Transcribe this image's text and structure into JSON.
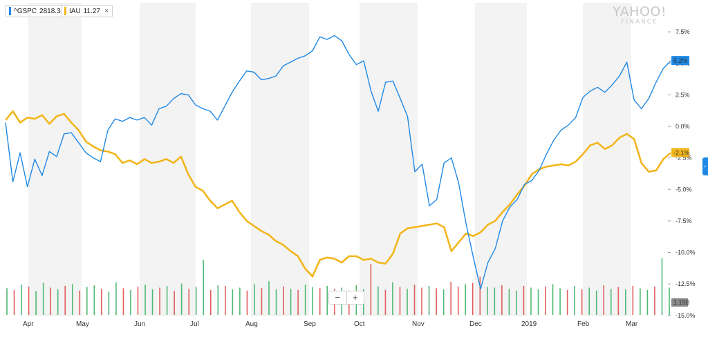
{
  "legend": {
    "items": [
      {
        "symbol": "^GSPC",
        "value": "2818.37",
        "color": "#1e88e5",
        "closable": false
      },
      {
        "symbol": "IAU",
        "value": "11.27",
        "color": "#f2b51b",
        "closable": true
      }
    ],
    "close_glyph": "×"
  },
  "watermark": {
    "line1": "YAHOO!",
    "line2": "FINANCE"
  },
  "zoom": {
    "minus": "−",
    "plus": "+"
  },
  "side_tab": {
    "glyph": "›",
    "icon": "chevron-right-icon"
  },
  "colors": {
    "spy": "#1e88e5",
    "gold": "#f2b51b",
    "vol_up": "#4fb874",
    "vol_down": "#e05d5d",
    "band": "#f3f3f3"
  },
  "chart_data": {
    "type": "line",
    "title": "",
    "ylabel": "",
    "ylim": [
      -15,
      10
    ],
    "yticks": [
      "7.5%",
      "5.0%",
      "2.5%",
      "0.0%",
      "-2.5%",
      "-5.0%",
      "-7.5%",
      "-10.0%",
      "-12.5%",
      "-15.0%"
    ],
    "months": [
      "Apr",
      "May",
      "Jun",
      "Jul",
      "Aug",
      "Sep",
      "Oct",
      "Nov",
      "Dec",
      "2019",
      "Feb",
      "Mar"
    ],
    "series": [
      {
        "name": "^GSPC",
        "end_label": "5.2%",
        "values": [
          0.3,
          -4.4,
          -2.1,
          -4.8,
          -2.6,
          -3.9,
          -2.0,
          -2.4,
          -0.6,
          -0.5,
          -1.3,
          -2.1,
          -2.5,
          -2.8,
          -0.3,
          0.6,
          0.4,
          0.7,
          0.5,
          0.7,
          0.1,
          1.4,
          1.6,
          2.2,
          2.6,
          2.5,
          1.7,
          1.4,
          1.2,
          0.5,
          1.6,
          2.7,
          3.6,
          4.4,
          4.3,
          3.7,
          3.8,
          4.0,
          4.8,
          5.1,
          5.4,
          5.6,
          6.0,
          7.1,
          6.9,
          7.2,
          6.8,
          5.7,
          4.9,
          5.2,
          2.8,
          1.2,
          3.5,
          3.6,
          2.2,
          0.8,
          -3.6,
          -3.0,
          -6.3,
          -5.8,
          -2.9,
          -2.5,
          -4.5,
          -7.7,
          -10.4,
          -12.9,
          -10.8,
          -9.7,
          -7.5,
          -6.4,
          -5.8,
          -4.6,
          -4.3,
          -3.5,
          -2.2,
          -1.1,
          -0.3,
          0.1,
          0.7,
          2.3,
          2.8,
          3.1,
          2.7,
          3.3,
          4.0,
          5.1,
          2.1,
          1.4,
          2.2,
          3.5,
          4.6,
          5.2
        ]
      },
      {
        "name": "IAU",
        "end_label": "-2.1%",
        "values": [
          0.5,
          1.2,
          0.3,
          0.7,
          0.6,
          0.9,
          0.2,
          0.8,
          1.0,
          0.3,
          -0.3,
          -1.2,
          -1.6,
          -1.9,
          -2.0,
          -2.2,
          -2.9,
          -2.7,
          -3.0,
          -2.6,
          -2.9,
          -2.8,
          -2.6,
          -2.9,
          -2.4,
          -3.8,
          -4.8,
          -5.1,
          -5.9,
          -6.5,
          -6.2,
          -5.9,
          -6.8,
          -7.5,
          -7.9,
          -8.3,
          -8.6,
          -9.1,
          -9.4,
          -9.9,
          -10.3,
          -11.3,
          -11.9,
          -10.6,
          -10.4,
          -10.5,
          -10.8,
          -10.3,
          -10.3,
          -10.6,
          -10.5,
          -10.8,
          -10.9,
          -10.1,
          -8.5,
          -8.1,
          -8.0,
          -7.9,
          -7.8,
          -7.7,
          -8.0,
          -9.9,
          -9.2,
          -8.5,
          -8.7,
          -8.4,
          -7.8,
          -7.5,
          -6.8,
          -6.2,
          -5.4,
          -4.7,
          -3.8,
          -3.4,
          -3.2,
          -3.1,
          -3.0,
          -3.1,
          -2.8,
          -2.2,
          -1.5,
          -1.3,
          -1.8,
          -1.5,
          -0.9,
          -0.6,
          -1.0,
          -2.9,
          -3.6,
          -3.5,
          -2.6,
          -2.1
        ]
      }
    ],
    "volume": {
      "label": "1.19B",
      "values": [
        0.46,
        0.43,
        0.52,
        0.49,
        0.41,
        0.55,
        0.47,
        0.44,
        0.5,
        0.53,
        0.42,
        0.48,
        0.51,
        0.45,
        0.4,
        0.56,
        0.46,
        0.43,
        0.49,
        0.52,
        0.44,
        0.47,
        0.5,
        0.41,
        0.54,
        0.45,
        0.48,
        0.95,
        0.43,
        0.51,
        0.5,
        0.44,
        0.47,
        0.42,
        0.53,
        0.46,
        0.58,
        0.44,
        0.49,
        0.45,
        0.43,
        0.52,
        0.48,
        0.46,
        0.5,
        0.45,
        0.47,
        0.42,
        0.51,
        0.44,
        0.88,
        0.49,
        0.43,
        0.56,
        0.48,
        0.45,
        0.52,
        0.47,
        0.5,
        0.46,
        0.44,
        0.57,
        0.49,
        0.53,
        0.55,
        0.66,
        0.48,
        0.47,
        0.51,
        0.45,
        0.42,
        0.5,
        0.47,
        0.44,
        0.49,
        0.53,
        0.46,
        0.43,
        0.5,
        0.44,
        0.47,
        0.42,
        0.51,
        0.45,
        0.48,
        0.44,
        0.5,
        0.46,
        0.43,
        0.49,
        0.98,
        0.47
      ],
      "direction": [
        "u",
        "d",
        "u",
        "d",
        "u",
        "u",
        "d",
        "u",
        "d",
        "u",
        "d",
        "u",
        "u",
        "d",
        "u",
        "u",
        "d",
        "u",
        "d",
        "u",
        "u",
        "d",
        "u",
        "d",
        "u",
        "d",
        "u",
        "u",
        "d",
        "u",
        "d",
        "u",
        "u",
        "d",
        "u",
        "d",
        "u",
        "u",
        "d",
        "u",
        "d",
        "u",
        "u",
        "d",
        "u",
        "d",
        "u",
        "d",
        "u",
        "u",
        "d",
        "u",
        "d",
        "u",
        "d",
        "u",
        "d",
        "d",
        "u",
        "d",
        "u",
        "d",
        "d",
        "u",
        "d",
        "d",
        "u",
        "u",
        "d",
        "u",
        "u",
        "d",
        "u",
        "u",
        "d",
        "u",
        "u",
        "d",
        "u",
        "d",
        "u",
        "u",
        "d",
        "u",
        "d",
        "u",
        "d",
        "u",
        "u",
        "d",
        "u",
        "u"
      ]
    }
  }
}
